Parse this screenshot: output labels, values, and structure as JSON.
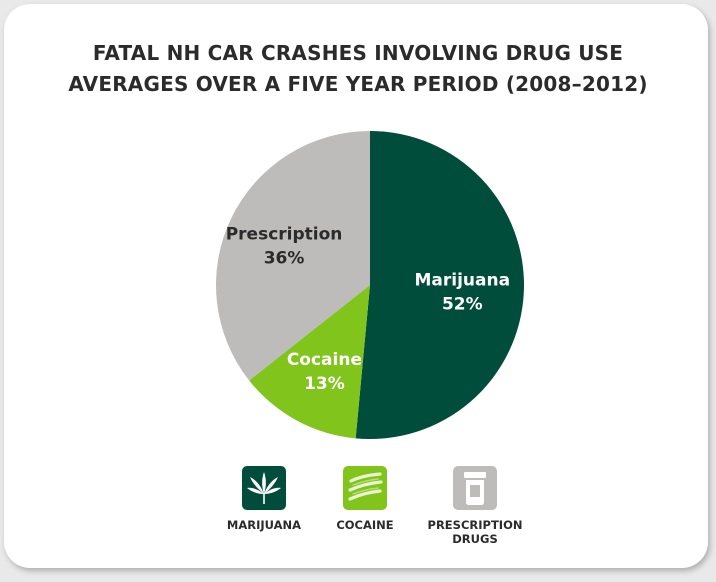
{
  "chart_data": {
    "type": "pie",
    "title": "FATAL NH CAR CRASHES INVOLVING DRUG USE",
    "subtitle": "AVERAGES OVER A FIVE YEAR PERIOD (2008–2012)",
    "slices": [
      {
        "name": "Marijuana",
        "value": 52,
        "value_label": "52%",
        "color": "#004d3c",
        "text_color": "#ffffff"
      },
      {
        "name": "Cocaine",
        "value": 13,
        "value_label": "13%",
        "color": "#80c41c",
        "text_color": "#ffffff"
      },
      {
        "name": "Prescription",
        "value": 36,
        "value_label": "36%",
        "color": "#bdbcbb",
        "text_color": "#2b2b2b"
      }
    ],
    "start_angle_deg": 0,
    "direction": "clockwise"
  },
  "legend": [
    {
      "label": "MARIJUANA",
      "icon": "marijuana-leaf-icon",
      "color": "#004d3c"
    },
    {
      "label": "COCAINE",
      "icon": "cocaine-lines-icon",
      "color": "#80c41c"
    },
    {
      "label": "PRESCRIPTION\nDRUGS",
      "icon": "pill-bottle-icon",
      "color": "#bdbcbb"
    }
  ]
}
